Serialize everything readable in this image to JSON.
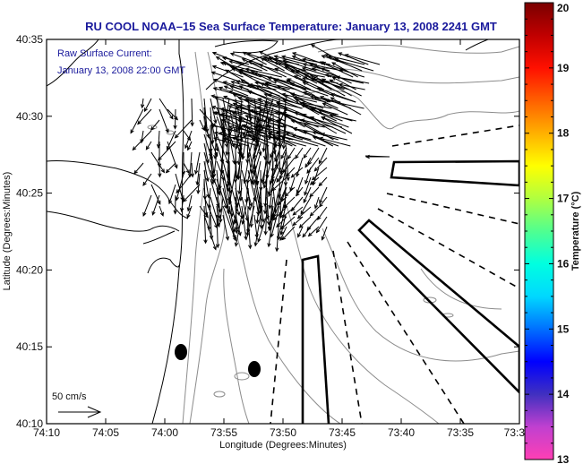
{
  "title": "RU COOL  NOAA–15  Sea Surface Temperature:  January 13, 2008 2241 GMT",
  "annotation": {
    "line1": "Raw Surface Current:",
    "line2": "January 13, 2008 22:00 GMT"
  },
  "scale_arrow": {
    "label": "50 cm/s",
    "value_cm_s": 50
  },
  "axes": {
    "xlabel": "Longitude (Degrees:Minutes)",
    "ylabel": "Latitude (Degrees:Minutes)",
    "xticks": [
      "74:10",
      "74:05",
      "74:00",
      "73:55",
      "73:50",
      "73:45",
      "73:40",
      "73:35",
      "73:3"
    ],
    "yticks": [
      "40:35",
      "40:30",
      "40:25",
      "40:20",
      "40:15",
      "40:10"
    ]
  },
  "colorbar": {
    "label": "Temperature (°C)",
    "ticks": [
      "20",
      "19",
      "18",
      "17",
      "16",
      "15",
      "14",
      "13"
    ],
    "range": [
      13,
      20
    ],
    "colors": [
      "#ff3fb4",
      "#c040d0",
      "#4030c0",
      "#0000ff",
      "#0070ff",
      "#00d8ff",
      "#00ffe0",
      "#50ff90",
      "#b0ff40",
      "#ffff00",
      "#ffb000",
      "#ff6000",
      "#ff1000",
      "#c00000",
      "#7a0000"
    ]
  },
  "markers": [
    {
      "name": "station-marker-1"
    },
    {
      "name": "station-marker-2"
    }
  ],
  "colors": {
    "title": "#1a1a9c",
    "coast": "#000000",
    "bathy": "#8c8c8c",
    "vectors": "#000000"
  }
}
